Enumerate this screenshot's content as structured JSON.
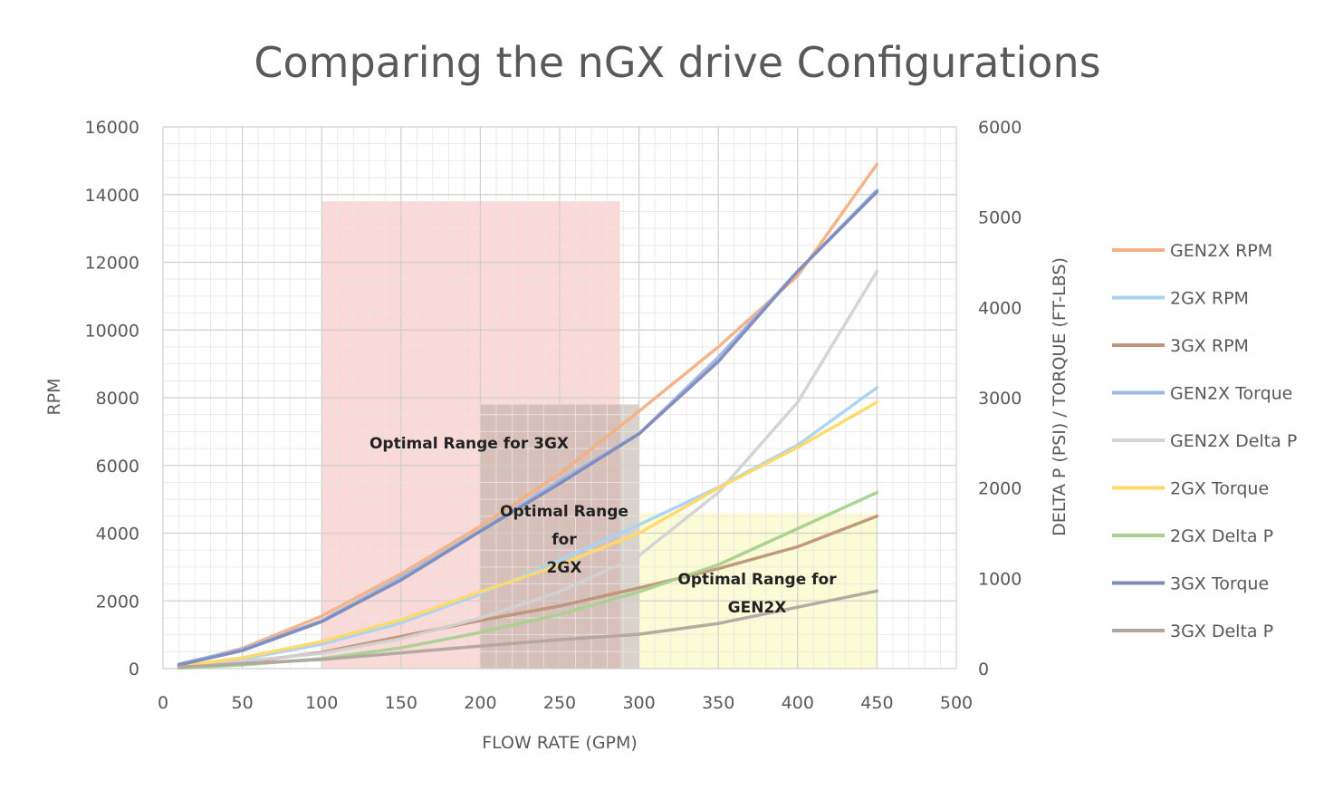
{
  "chart_data": {
    "type": "line",
    "title": "Comparing the nGX drive Configurations",
    "xlabel": "FLOW RATE (GPM)",
    "ylabel": "RPM",
    "y2label": "DELTA P (PSI) / TORQUE (FT-LBS)",
    "xlim": [
      0,
      500
    ],
    "ylim": [
      0,
      16000
    ],
    "y2lim": [
      0,
      6000
    ],
    "xticks": [
      "0",
      "50",
      "100",
      "150",
      "200",
      "250",
      "300",
      "350",
      "400",
      "450",
      "500"
    ],
    "yticks": [
      "0",
      "2000",
      "4000",
      "6000",
      "8000",
      "10000",
      "12000",
      "14000",
      "16000"
    ],
    "y2ticks": [
      "0",
      "1000",
      "2000",
      "3000",
      "4000",
      "5000",
      "6000"
    ],
    "grid": true,
    "legend_position": "right",
    "regions": [
      {
        "label": "Optimal Range for 3GX",
        "x": [
          100,
          288
        ],
        "y": [
          0,
          13800
        ],
        "color": "#f8cccc"
      },
      {
        "label": "Optimal Range for 2GX",
        "x": [
          200,
          300
        ],
        "y": [
          0,
          7800
        ],
        "color": "#b9aca1"
      },
      {
        "label": "Optimal Range for GEN2X",
        "x": [
          300,
          450
        ],
        "y": [
          0,
          4600
        ],
        "color": "#fafac8"
      }
    ],
    "series": [
      {
        "name": "GEN2X RPM",
        "axis": "y",
        "color": "#f4b183",
        "x": [
          10,
          50,
          100,
          150,
          200,
          250,
          300,
          350,
          400,
          450
        ],
        "y": [
          100,
          600,
          1550,
          2800,
          4200,
          5750,
          7600,
          9500,
          11600,
          14900
        ]
      },
      {
        "name": "2GX RPM",
        "axis": "y",
        "color": "#a9d3f2",
        "x": [
          10,
          50,
          100,
          150,
          200,
          250,
          300,
          350,
          400,
          450
        ],
        "y": [
          50,
          280,
          720,
          1350,
          2200,
          3200,
          4250,
          5350,
          6600,
          8300
        ]
      },
      {
        "name": "3GX RPM",
        "axis": "y",
        "color": "#c09478",
        "x": [
          10,
          50,
          100,
          150,
          200,
          250,
          300,
          350,
          400,
          450
        ],
        "y": [
          40,
          180,
          480,
          950,
          1420,
          1850,
          2380,
          2950,
          3600,
          4500
        ]
      },
      {
        "name": "GEN2X Torque",
        "axis": "y2",
        "color": "#9db8e8",
        "x": [
          10,
          50,
          100,
          150,
          200,
          250,
          300,
          350,
          400,
          450
        ],
        "y": [
          50,
          215,
          530,
          1010,
          1530,
          2080,
          2600,
          3450,
          4400,
          5300
        ]
      },
      {
        "name": "GEN2X Delta P",
        "axis": "y2",
        "color": "#d2d2d2",
        "x": [
          10,
          50,
          100,
          150,
          200,
          250,
          300,
          350,
          400,
          450
        ],
        "y": [
          20,
          80,
          170,
          330,
          560,
          850,
          1250,
          1950,
          2950,
          4400
        ]
      },
      {
        "name": "2GX Torque",
        "axis": "y2",
        "color": "#ffd966",
        "x": [
          10,
          50,
          100,
          150,
          200,
          250,
          300,
          350,
          400,
          450
        ],
        "y": [
          25,
          120,
          300,
          540,
          850,
          1150,
          1500,
          2000,
          2450,
          2950
        ]
      },
      {
        "name": "2GX Delta P",
        "axis": "y2",
        "color": "#a9d18e",
        "x": [
          10,
          50,
          100,
          150,
          200,
          250,
          300,
          350,
          400,
          450
        ],
        "y": [
          5,
          40,
          110,
          230,
          400,
          600,
          850,
          1150,
          1550,
          1950
        ]
      },
      {
        "name": "3GX Torque",
        "axis": "y2",
        "color": "#7f8ab8",
        "x": [
          10,
          50,
          100,
          150,
          200,
          250,
          300,
          350,
          400,
          450
        ],
        "y": [
          40,
          200,
          520,
          980,
          1520,
          2050,
          2600,
          3400,
          4400,
          5280
        ]
      },
      {
        "name": "3GX Delta P",
        "axis": "y2",
        "color": "#b0a69e",
        "x": [
          10,
          50,
          100,
          150,
          200,
          250,
          300,
          350,
          400,
          450
        ],
        "y": [
          15,
          55,
          100,
          175,
          250,
          320,
          380,
          500,
          680,
          860
        ]
      }
    ]
  }
}
